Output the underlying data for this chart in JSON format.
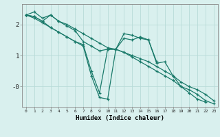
{
  "x": [
    0,
    1,
    2,
    3,
    4,
    5,
    6,
    7,
    8,
    9,
    10,
    11,
    12,
    13,
    14,
    15,
    16,
    17,
    18,
    19,
    20,
    21,
    22,
    23
  ],
  "line1": [
    2.3,
    2.4,
    2.2,
    2.3,
    2.1,
    2.0,
    1.85,
    1.7,
    1.55,
    1.4,
    1.25,
    1.2,
    1.1,
    1.0,
    0.9,
    0.8,
    0.65,
    0.5,
    0.35,
    0.15,
    0.0,
    -0.1,
    -0.25,
    -0.45
  ],
  "line2": [
    2.3,
    2.2,
    2.05,
    1.9,
    1.75,
    1.6,
    1.45,
    1.35,
    0.5,
    -0.2,
    1.2,
    1.2,
    1.55,
    1.5,
    1.6,
    1.5,
    0.75,
    0.8,
    0.35,
    0.0,
    -0.2,
    -0.4,
    -0.5,
    null
  ],
  "line3": [
    2.3,
    2.25,
    2.1,
    1.9,
    1.75,
    1.6,
    1.45,
    1.3,
    0.35,
    -0.35,
    -0.4,
    1.2,
    1.7,
    1.65,
    1.55,
    1.5,
    0.8,
    null,
    null,
    null,
    null,
    null,
    null,
    null
  ],
  "line4": [
    2.3,
    2.25,
    2.1,
    2.3,
    2.1,
    1.95,
    1.8,
    1.45,
    1.3,
    1.15,
    1.2,
    1.2,
    1.1,
    0.95,
    0.8,
    0.65,
    0.5,
    0.35,
    0.2,
    0.0,
    -0.1,
    -0.25,
    -0.45,
    -0.55
  ],
  "line_color": "#1a7a6a",
  "bg_color": "#d9f0ee",
  "grid_color": "#b8dbd8",
  "xlabel": "Humidex (Indice chaleur)",
  "ylim": [
    -0.65,
    2.65
  ],
  "xlim": [
    -0.5,
    23.5
  ],
  "xtick_labels": [
    "0",
    "1",
    "2",
    "3",
    "4",
    "5",
    "6",
    "7",
    "8",
    "9",
    "10",
    "11",
    "12",
    "13",
    "14",
    "15",
    "16",
    "17",
    "18",
    "19",
    "20",
    "21",
    "22",
    "23"
  ],
  "ytick_vals": [
    2,
    1,
    0
  ],
  "ytick_labels": [
    "2",
    "1",
    "-0"
  ]
}
